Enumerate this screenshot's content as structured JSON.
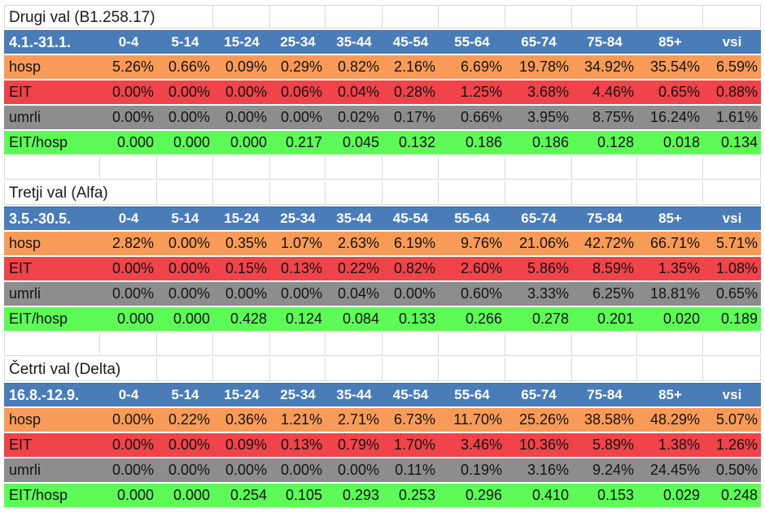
{
  "columns": [
    "0-4",
    "5-14",
    "15-24",
    "25-34",
    "35-44",
    "45-54",
    "55-64",
    "65-74",
    "75-84",
    "85+",
    "vsi"
  ],
  "colors": {
    "header_bg": "#4A7CB8",
    "header_text": "#FFFFFF",
    "hosp_bg": "#F89B58",
    "eit_bg": "#F1434A",
    "umrli_bg": "#8D8D8D",
    "ratio_bg": "#5DFA58",
    "gridline": "#D9D9D9",
    "body_text": "#141414"
  },
  "sections": [
    {
      "title": "Drugi val (B1.258.17)",
      "date_range": "4.1.-31.1.",
      "rows": [
        {
          "label": "hosp",
          "color": "#F89B58",
          "values": [
            "5.26%",
            "0.66%",
            "0.09%",
            "0.29%",
            "0.82%",
            "2.16%",
            "6.69%",
            "19.78%",
            "34.92%",
            "35.54%",
            "6.59%"
          ]
        },
        {
          "label": "EIT",
          "color": "#F1434A",
          "values": [
            "0.00%",
            "0.00%",
            "0.00%",
            "0.06%",
            "0.04%",
            "0.28%",
            "1.25%",
            "3.68%",
            "4.46%",
            "0.65%",
            "0.88%"
          ]
        },
        {
          "label": "umrli",
          "color": "#8D8D8D",
          "values": [
            "0.00%",
            "0.00%",
            "0.00%",
            "0.00%",
            "0.02%",
            "0.17%",
            "0.66%",
            "3.95%",
            "8.75%",
            "16.24%",
            "1.61%"
          ]
        },
        {
          "label": "EIT/hosp",
          "color": "#5DFA58",
          "values": [
            "0.000",
            "0.000",
            "0.000",
            "0.217",
            "0.045",
            "0.132",
            "0.186",
            "0.186",
            "0.128",
            "0.018",
            "0.134"
          ]
        }
      ]
    },
    {
      "title": "Tretji val (Alfa)",
      "date_range": "3.5.-30.5.",
      "rows": [
        {
          "label": "hosp",
          "color": "#F89B58",
          "values": [
            "2.82%",
            "0.00%",
            "0.35%",
            "1.07%",
            "2.63%",
            "6.19%",
            "9.76%",
            "21.06%",
            "42.72%",
            "66.71%",
            "5.71%"
          ]
        },
        {
          "label": "EIT",
          "color": "#F1434A",
          "values": [
            "0.00%",
            "0.00%",
            "0.15%",
            "0.13%",
            "0.22%",
            "0.82%",
            "2.60%",
            "5.86%",
            "8.59%",
            "1.35%",
            "1.08%"
          ]
        },
        {
          "label": "umrli",
          "color": "#8D8D8D",
          "values": [
            "0.00%",
            "0.00%",
            "0.00%",
            "0.00%",
            "0.04%",
            "0.00%",
            "0.60%",
            "3.33%",
            "6.25%",
            "18.81%",
            "0.65%"
          ]
        },
        {
          "label": "EIT/hosp",
          "color": "#5DFA58",
          "values": [
            "0.000",
            "0.000",
            "0.428",
            "0.124",
            "0.084",
            "0.133",
            "0.266",
            "0.278",
            "0.201",
            "0.020",
            "0.189"
          ]
        }
      ]
    },
    {
      "title": "Četrti val (Delta)",
      "date_range": "16.8.-12.9.",
      "rows": [
        {
          "label": "hosp",
          "color": "#F89B58",
          "values": [
            "0.00%",
            "0.22%",
            "0.36%",
            "1.21%",
            "2.71%",
            "6.73%",
            "11.70%",
            "25.26%",
            "38.58%",
            "48.29%",
            "5.07%"
          ]
        },
        {
          "label": "EIT",
          "color": "#F1434A",
          "values": [
            "0.00%",
            "0.00%",
            "0.09%",
            "0.13%",
            "0.79%",
            "1.70%",
            "3.46%",
            "10.36%",
            "5.89%",
            "1.38%",
            "1.26%"
          ]
        },
        {
          "label": "umrli",
          "color": "#8D8D8D",
          "values": [
            "0.00%",
            "0.00%",
            "0.00%",
            "0.00%",
            "0.00%",
            "0.11%",
            "0.19%",
            "3.16%",
            "9.24%",
            "24.45%",
            "0.50%"
          ]
        },
        {
          "label": "EIT/hosp",
          "color": "#5DFA58",
          "values": [
            "0.000",
            "0.000",
            "0.254",
            "0.105",
            "0.293",
            "0.253",
            "0.296",
            "0.410",
            "0.153",
            "0.029",
            "0.248"
          ]
        }
      ]
    }
  ]
}
